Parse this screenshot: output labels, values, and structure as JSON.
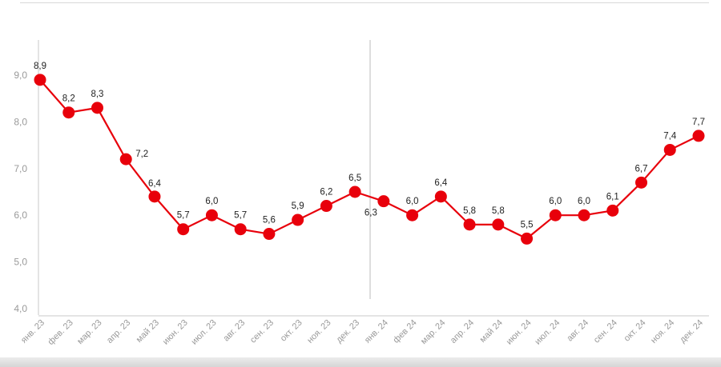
{
  "chart_data": {
    "type": "line",
    "categories": [
      "янв. 23",
      "фев. 23",
      "мар. 23",
      "апр. 23",
      "май 23",
      "июн. 23",
      "июл. 23",
      "авг. 23",
      "сен. 23",
      "окт. 23",
      "ноя. 23",
      "дек. 23",
      "янв. 24",
      "фев 24",
      "мар. 24",
      "апр. 24",
      "май 24",
      "июн. 24",
      "июл. 24",
      "авг. 24",
      "сен. 24",
      "окт. 24",
      "ноя. 24",
      "дек. 24"
    ],
    "series": [
      {
        "values": [
          8.9,
          8.2,
          8.3,
          7.2,
          6.4,
          5.7,
          6.0,
          5.7,
          5.6,
          5.9,
          6.2,
          6.5,
          6.3,
          6.0,
          6.4,
          5.8,
          5.8,
          5.5,
          6.0,
          6.0,
          6.1,
          6.7,
          7.4,
          7.7
        ],
        "labels": [
          "8,9",
          "8,2",
          "8,3",
          "7,2",
          "6,4",
          "5,7",
          "6,0",
          "5,7",
          "5,6",
          "5,9",
          "6,2",
          "6,5",
          "6,3",
          "6,0",
          "6,4",
          "5,8",
          "5,8",
          "5,5",
          "6,0",
          "6,0",
          "6,1",
          "6,7",
          "7,4",
          "7,7"
        ]
      }
    ],
    "y_ticks": [
      "4,0",
      "5,0",
      "6,0",
      "7,0",
      "8,0",
      "9,0"
    ],
    "ylim": [
      4.0,
      9.0
    ],
    "divider_after_category": "дек. 23",
    "grid": false,
    "colors": {
      "series": "#e8000b",
      "axis": "#c8c8c8",
      "divider": "#bdbdbd"
    }
  }
}
